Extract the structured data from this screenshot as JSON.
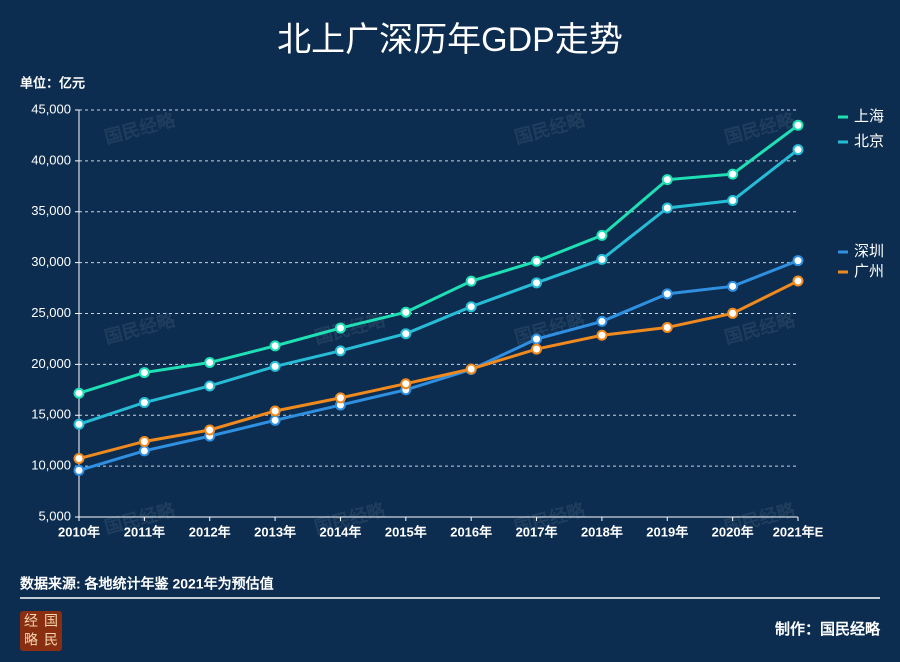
{
  "chart_data": {
    "type": "line",
    "title": "北上广深历年GDP走势",
    "unit_label": "单位：亿元",
    "categories": [
      "2010年",
      "2011年",
      "2012年",
      "2013年",
      "2014年",
      "2015年",
      "2016年",
      "2017年",
      "2018年",
      "2019年",
      "2020年",
      "2021年E"
    ],
    "series": [
      {
        "name": "上海",
        "color": "#1fe0b4",
        "values": [
          17166,
          19195,
          20182,
          21818,
          23568,
          25123,
          28179,
          30133,
          32680,
          38155,
          38701,
          43500
        ]
      },
      {
        "name": "北京",
        "color": "#27bcd6",
        "values": [
          14114,
          16252,
          17879,
          19801,
          21331,
          23015,
          25669,
          28015,
          30320,
          35371,
          36103,
          41100
        ]
      },
      {
        "name": "深圳",
        "color": "#2f8fe0",
        "values": [
          9581,
          11502,
          12950,
          14500,
          16002,
          17503,
          19493,
          22490,
          24222,
          26927,
          27670,
          30200
        ]
      },
      {
        "name": "广州",
        "color": "#f08a1e",
        "values": [
          10748,
          12423,
          13551,
          15420,
          16707,
          18100,
          19547,
          21503,
          22859,
          23629,
          25019,
          28200
        ]
      }
    ],
    "ylim": [
      5000,
      45000
    ],
    "yticks": [
      {
        "value": 5000,
        "label": "5,000"
      },
      {
        "value": 10000,
        "label": "10,000"
      },
      {
        "value": 15000,
        "label": "15,000"
      },
      {
        "value": 20000,
        "label": "20,000"
      },
      {
        "value": 25000,
        "label": "25,000"
      },
      {
        "value": 30000,
        "label": "30,000"
      },
      {
        "value": 35000,
        "label": "35,000"
      },
      {
        "value": 40000,
        "label": "40,000"
      },
      {
        "value": 45000,
        "label": "45,000"
      }
    ],
    "grid": true,
    "source": "数据来源: 各地统计年鉴  2021年为预估值",
    "credit": "制作：国民经略",
    "watermark": "国民经略",
    "logo": [
      "经",
      "国",
      "略",
      "民"
    ]
  }
}
